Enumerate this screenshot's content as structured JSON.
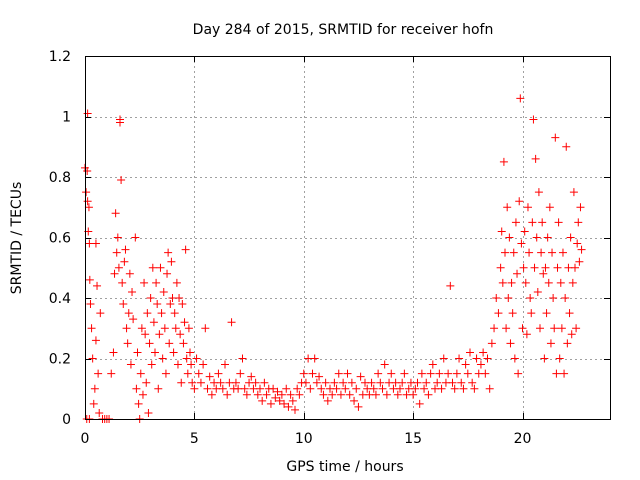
{
  "chart_data": {
    "type": "scatter",
    "title": "Day 284 of 2015, SRMTID for receiver hofn",
    "xlabel": "GPS time / hours",
    "ylabel": "SRMTID / TECUs",
    "xlim": [
      0,
      24
    ],
    "ylim": [
      0,
      1.2
    ],
    "xticks": [
      0,
      5,
      10,
      15,
      20
    ],
    "yticks": [
      0,
      0.2,
      0.4,
      0.6,
      0.8,
      1,
      1.2
    ],
    "xtick_labels": [
      "0",
      "5",
      "10",
      "15",
      "20"
    ],
    "ytick_labels": [
      "0",
      "0.2",
      "0.4",
      "0.6",
      "0.8",
      "1",
      "1.2"
    ],
    "grid": true,
    "marker": "+",
    "color": "#ff0000",
    "series": [
      {
        "name": "SRMTID",
        "points": [
          [
            0.0,
            0.83
          ],
          [
            0.05,
            0.75
          ],
          [
            0.1,
            0.82
          ],
          [
            0.12,
            0.72
          ],
          [
            0.15,
            0.62
          ],
          [
            0.18,
            0.7
          ],
          [
            0.2,
            0.58
          ],
          [
            0.22,
            0.46
          ],
          [
            0.25,
            0.38
          ],
          [
            0.3,
            0.3
          ],
          [
            0.12,
            1.01
          ],
          [
            0.08,
            0.0
          ],
          [
            0.2,
            0.0
          ],
          [
            0.35,
            0.2
          ],
          [
            0.4,
            0.05
          ],
          [
            0.45,
            0.1
          ],
          [
            0.5,
            0.26
          ],
          [
            0.5,
            0.58
          ],
          [
            0.55,
            0.44
          ],
          [
            0.6,
            0.15
          ],
          [
            0.65,
            0.02
          ],
          [
            0.7,
            0.35
          ],
          [
            0.8,
            0.0
          ],
          [
            0.9,
            0.0
          ],
          [
            1.0,
            0.0
          ],
          [
            1.1,
            0.0
          ],
          [
            1.2,
            0.15
          ],
          [
            1.3,
            0.22
          ],
          [
            1.35,
            0.48
          ],
          [
            1.4,
            0.68
          ],
          [
            1.45,
            0.55
          ],
          [
            1.5,
            0.6
          ],
          [
            1.55,
            0.5
          ],
          [
            1.6,
            0.98
          ],
          [
            1.6,
            0.99
          ],
          [
            1.65,
            0.79
          ],
          [
            1.7,
            0.45
          ],
          [
            1.75,
            0.38
          ],
          [
            1.8,
            0.52
          ],
          [
            1.85,
            0.56
          ],
          [
            1.9,
            0.3
          ],
          [
            1.95,
            0.25
          ],
          [
            2.0,
            0.35
          ],
          [
            2.05,
            0.48
          ],
          [
            2.1,
            0.18
          ],
          [
            2.15,
            0.42
          ],
          [
            2.2,
            0.33
          ],
          [
            2.3,
            0.6
          ],
          [
            2.35,
            0.1
          ],
          [
            2.4,
            0.22
          ],
          [
            2.45,
            0.05
          ],
          [
            2.5,
            0.0
          ],
          [
            2.55,
            0.15
          ],
          [
            2.6,
            0.3
          ],
          [
            2.65,
            0.08
          ],
          [
            2.7,
            0.45
          ],
          [
            2.75,
            0.28
          ],
          [
            2.8,
            0.12
          ],
          [
            2.85,
            0.35
          ],
          [
            2.9,
            0.02
          ],
          [
            2.95,
            0.25
          ],
          [
            3.0,
            0.4
          ],
          [
            3.05,
            0.18
          ],
          [
            3.1,
            0.5
          ],
          [
            3.15,
            0.32
          ],
          [
            3.2,
            0.22
          ],
          [
            3.25,
            0.45
          ],
          [
            3.3,
            0.38
          ],
          [
            3.35,
            0.1
          ],
          [
            3.4,
            0.28
          ],
          [
            3.45,
            0.5
          ],
          [
            3.5,
            0.35
          ],
          [
            3.55,
            0.2
          ],
          [
            3.6,
            0.42
          ],
          [
            3.65,
            0.3
          ],
          [
            3.7,
            0.15
          ],
          [
            3.75,
            0.48
          ],
          [
            3.8,
            0.55
          ],
          [
            3.85,
            0.25
          ],
          [
            3.9,
            0.38
          ],
          [
            3.95,
            0.52
          ],
          [
            4.0,
            0.4
          ],
          [
            4.05,
            0.22
          ],
          [
            4.1,
            0.35
          ],
          [
            4.15,
            0.3
          ],
          [
            4.2,
            0.45
          ],
          [
            4.25,
            0.18
          ],
          [
            4.3,
            0.4
          ],
          [
            4.35,
            0.28
          ],
          [
            4.4,
            0.12
          ],
          [
            4.45,
            0.38
          ],
          [
            4.5,
            0.25
          ],
          [
            4.55,
            0.32
          ],
          [
            4.6,
            0.56
          ],
          [
            4.65,
            0.2
          ],
          [
            4.7,
            0.15
          ],
          [
            4.75,
            0.3
          ],
          [
            4.8,
            0.22
          ],
          [
            4.85,
            0.18
          ],
          [
            4.9,
            0.12
          ],
          [
            5.0,
            0.1
          ],
          [
            5.1,
            0.2
          ],
          [
            5.2,
            0.15
          ],
          [
            5.3,
            0.12
          ],
          [
            5.4,
            0.18
          ],
          [
            5.5,
            0.3
          ],
          [
            5.6,
            0.1
          ],
          [
            5.7,
            0.14
          ],
          [
            5.8,
            0.08
          ],
          [
            5.9,
            0.12
          ],
          [
            6.0,
            0.1
          ],
          [
            6.1,
            0.15
          ],
          [
            6.2,
            0.12
          ],
          [
            6.3,
            0.1
          ],
          [
            6.4,
            0.18
          ],
          [
            6.5,
            0.08
          ],
          [
            6.6,
            0.12
          ],
          [
            6.7,
            0.32
          ],
          [
            6.8,
            0.1
          ],
          [
            6.9,
            0.12
          ],
          [
            7.0,
            0.1
          ],
          [
            7.1,
            0.15
          ],
          [
            7.2,
            0.2
          ],
          [
            7.3,
            0.1
          ],
          [
            7.4,
            0.08
          ],
          [
            7.5,
            0.12
          ],
          [
            7.6,
            0.14
          ],
          [
            7.7,
            0.1
          ],
          [
            7.8,
            0.12
          ],
          [
            7.9,
            0.08
          ],
          [
            8.0,
            0.1
          ],
          [
            8.1,
            0.06
          ],
          [
            8.2,
            0.12
          ],
          [
            8.3,
            0.08
          ],
          [
            8.4,
            0.1
          ],
          [
            8.5,
            0.05
          ],
          [
            8.6,
            0.1
          ],
          [
            8.7,
            0.07
          ],
          [
            8.8,
            0.09
          ],
          [
            8.9,
            0.06
          ],
          [
            9.0,
            0.08
          ],
          [
            9.1,
            0.05
          ],
          [
            9.2,
            0.1
          ],
          [
            9.3,
            0.04
          ],
          [
            9.4,
            0.08
          ],
          [
            9.5,
            0.06
          ],
          [
            9.6,
            0.03
          ],
          [
            9.7,
            0.1
          ],
          [
            9.8,
            0.08
          ],
          [
            9.9,
            0.12
          ],
          [
            10.0,
            0.15
          ],
          [
            10.1,
            0.12
          ],
          [
            10.2,
            0.2
          ],
          [
            10.3,
            0.1
          ],
          [
            10.4,
            0.15
          ],
          [
            10.5,
            0.2
          ],
          [
            10.6,
            0.12
          ],
          [
            10.7,
            0.14
          ],
          [
            10.8,
            0.1
          ],
          [
            10.9,
            0.08
          ],
          [
            11.0,
            0.12
          ],
          [
            11.1,
            0.06
          ],
          [
            11.2,
            0.1
          ],
          [
            11.3,
            0.08
          ],
          [
            11.4,
            0.12
          ],
          [
            11.5,
            0.1
          ],
          [
            11.6,
            0.15
          ],
          [
            11.7,
            0.08
          ],
          [
            11.8,
            0.12
          ],
          [
            11.9,
            0.1
          ],
          [
            12.0,
            0.15
          ],
          [
            12.1,
            0.08
          ],
          [
            12.2,
            0.12
          ],
          [
            12.3,
            0.06
          ],
          [
            12.4,
            0.1
          ],
          [
            12.5,
            0.04
          ],
          [
            12.6,
            0.14
          ],
          [
            12.7,
            0.08
          ],
          [
            12.8,
            0.12
          ],
          [
            12.9,
            0.1
          ],
          [
            13.0,
            0.08
          ],
          [
            13.1,
            0.12
          ],
          [
            13.2,
            0.1
          ],
          [
            13.3,
            0.08
          ],
          [
            13.4,
            0.15
          ],
          [
            13.5,
            0.12
          ],
          [
            13.6,
            0.1
          ],
          [
            13.7,
            0.18
          ],
          [
            13.8,
            0.08
          ],
          [
            13.9,
            0.12
          ],
          [
            14.0,
            0.15
          ],
          [
            14.1,
            0.1
          ],
          [
            14.2,
            0.12
          ],
          [
            14.3,
            0.08
          ],
          [
            14.4,
            0.1
          ],
          [
            14.5,
            0.12
          ],
          [
            14.6,
            0.15
          ],
          [
            14.7,
            0.08
          ],
          [
            14.8,
            0.1
          ],
          [
            14.9,
            0.12
          ],
          [
            15.0,
            0.08
          ],
          [
            15.1,
            0.1
          ],
          [
            15.2,
            0.12
          ],
          [
            15.3,
            0.05
          ],
          [
            15.4,
            0.15
          ],
          [
            15.5,
            0.1
          ],
          [
            15.6,
            0.12
          ],
          [
            15.7,
            0.08
          ],
          [
            15.8,
            0.15
          ],
          [
            15.9,
            0.18
          ],
          [
            16.0,
            0.1
          ],
          [
            16.1,
            0.12
          ],
          [
            16.2,
            0.15
          ],
          [
            16.3,
            0.1
          ],
          [
            16.4,
            0.2
          ],
          [
            16.5,
            0.12
          ],
          [
            16.6,
            0.15
          ],
          [
            16.7,
            0.44
          ],
          [
            16.8,
            0.12
          ],
          [
            16.9,
            0.1
          ],
          [
            17.0,
            0.15
          ],
          [
            17.1,
            0.2
          ],
          [
            17.2,
            0.12
          ],
          [
            17.3,
            0.1
          ],
          [
            17.4,
            0.18
          ],
          [
            17.5,
            0.15
          ],
          [
            17.6,
            0.22
          ],
          [
            17.7,
            0.12
          ],
          [
            17.8,
            0.1
          ],
          [
            17.9,
            0.2
          ],
          [
            18.0,
            0.15
          ],
          [
            18.1,
            0.18
          ],
          [
            18.2,
            0.22
          ],
          [
            18.3,
            0.15
          ],
          [
            18.4,
            0.2
          ],
          [
            18.5,
            0.1
          ],
          [
            18.6,
            0.25
          ],
          [
            18.7,
            0.3
          ],
          [
            18.8,
            0.4
          ],
          [
            18.9,
            0.35
          ],
          [
            19.0,
            0.5
          ],
          [
            19.05,
            0.62
          ],
          [
            19.1,
            0.45
          ],
          [
            19.15,
            0.85
          ],
          [
            19.2,
            0.55
          ],
          [
            19.25,
            0.3
          ],
          [
            19.3,
            0.7
          ],
          [
            19.35,
            0.4
          ],
          [
            19.4,
            0.6
          ],
          [
            19.45,
            0.25
          ],
          [
            19.5,
            0.45
          ],
          [
            19.55,
            0.35
          ],
          [
            19.6,
            0.55
          ],
          [
            19.65,
            0.2
          ],
          [
            19.7,
            0.65
          ],
          [
            19.75,
            0.48
          ],
          [
            19.8,
            0.15
          ],
          [
            19.85,
            0.72
          ],
          [
            19.9,
            1.06
          ],
          [
            19.95,
            0.58
          ],
          [
            20.0,
            0.3
          ],
          [
            20.05,
            0.5
          ],
          [
            20.1,
            0.62
          ],
          [
            20.15,
            0.45
          ],
          [
            20.2,
            0.28
          ],
          [
            20.25,
            0.7
          ],
          [
            20.3,
            0.55
          ],
          [
            20.35,
            0.4
          ],
          [
            20.4,
            0.35
          ],
          [
            20.45,
            0.65
          ],
          [
            20.5,
            0.99
          ],
          [
            20.55,
            0.5
          ],
          [
            20.6,
            0.86
          ],
          [
            20.65,
            0.6
          ],
          [
            20.7,
            0.42
          ],
          [
            20.75,
            0.75
          ],
          [
            20.8,
            0.3
          ],
          [
            20.85,
            0.55
          ],
          [
            20.9,
            0.65
          ],
          [
            20.95,
            0.48
          ],
          [
            21.0,
            0.2
          ],
          [
            21.05,
            0.5
          ],
          [
            21.1,
            0.35
          ],
          [
            21.15,
            0.6
          ],
          [
            21.2,
            0.45
          ],
          [
            21.25,
            0.7
          ],
          [
            21.3,
            0.25
          ],
          [
            21.35,
            0.55
          ],
          [
            21.4,
            0.4
          ],
          [
            21.45,
            0.3
          ],
          [
            21.5,
            0.93
          ],
          [
            21.55,
            0.15
          ],
          [
            21.6,
            0.5
          ],
          [
            21.65,
            0.65
          ],
          [
            21.7,
            0.2
          ],
          [
            21.75,
            0.45
          ],
          [
            21.8,
            0.3
          ],
          [
            21.85,
            0.55
          ],
          [
            21.9,
            0.15
          ],
          [
            21.95,
            0.4
          ],
          [
            22.0,
            0.9
          ],
          [
            22.05,
            0.25
          ],
          [
            22.1,
            0.5
          ],
          [
            22.15,
            0.35
          ],
          [
            22.2,
            0.6
          ],
          [
            22.25,
            0.28
          ],
          [
            22.3,
            0.45
          ],
          [
            22.35,
            0.75
          ],
          [
            22.4,
            0.5
          ],
          [
            22.45,
            0.3
          ],
          [
            22.5,
            0.58
          ],
          [
            22.55,
            0.65
          ],
          [
            22.6,
            0.52
          ],
          [
            22.65,
            0.7
          ],
          [
            22.7,
            0.56
          ]
        ]
      }
    ]
  }
}
